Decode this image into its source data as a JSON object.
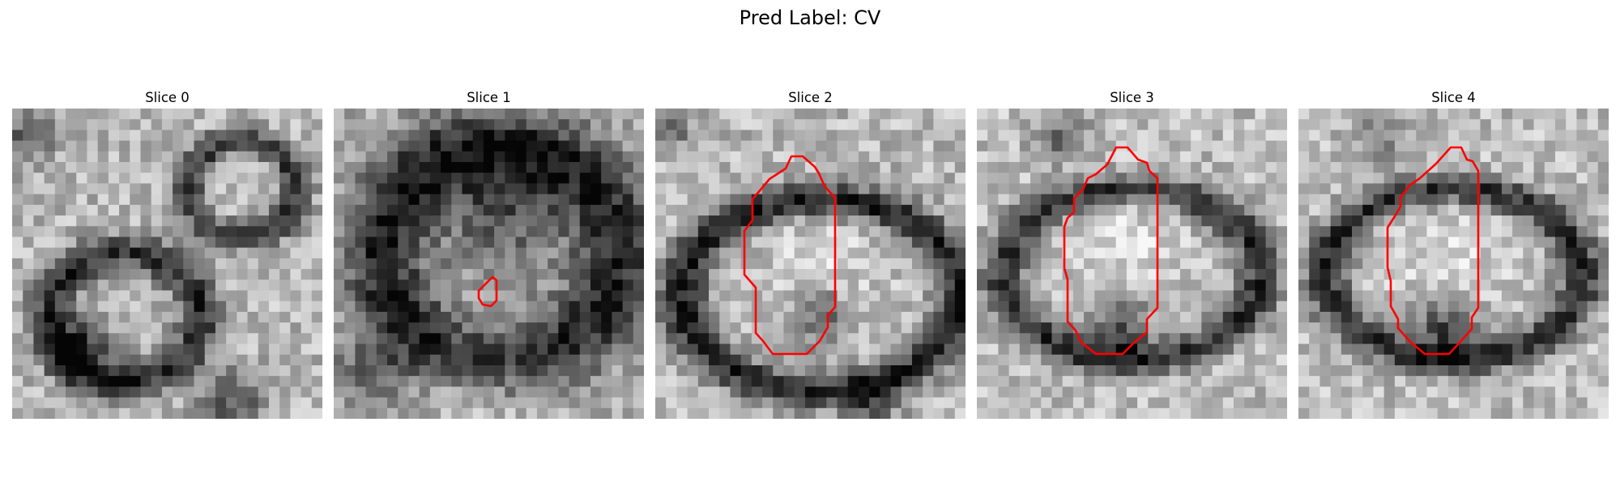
{
  "figure": {
    "title": "Pred Label: CV"
  },
  "panels": [
    {
      "title": "Slice 0",
      "has_contour": false
    },
    {
      "title": "Slice 1",
      "has_contour": true
    },
    {
      "title": "Slice 2",
      "has_contour": true
    },
    {
      "title": "Slice 3",
      "has_contour": true
    },
    {
      "title": "Slice 4",
      "has_contour": true
    }
  ],
  "colors": {
    "contour": "#ff0000"
  }
}
